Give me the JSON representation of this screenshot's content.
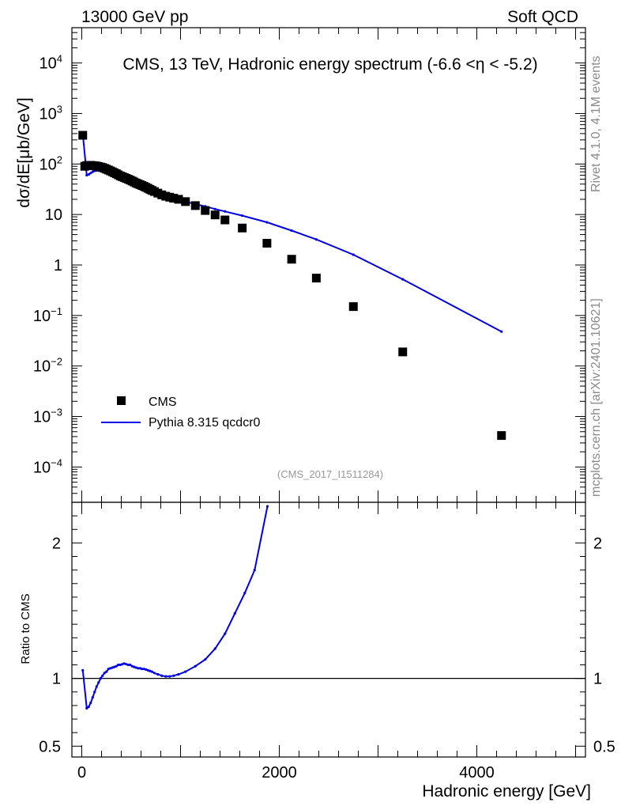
{
  "header": {
    "left": "13000 GeV pp",
    "right": "Soft QCD"
  },
  "side_labels": {
    "rivet": "Rivet 4.1.0,  4.1M events",
    "mcplots": "mcplots.cern.ch [arXiv:2401.10621]"
  },
  "colors": {
    "mc": "#0000e6",
    "data": "#000000",
    "ref_text": "#999999"
  },
  "chart_data": [
    {
      "type": "scatter",
      "panel": "main",
      "title": "CMS, 13 TeV, Hadronic energy spectrum (-6.6 <η < -5.2)",
      "ylabel": "dσ/dE[μb/GeV]",
      "xlabel": "Hadronic energy [GeV]",
      "yscale": "log",
      "xlim": [
        -100,
        5100
      ],
      "ylim": [
        2e-05,
        50000
      ],
      "y_ticks": [
        {
          "v": 10000,
          "label": "10^4"
        },
        {
          "v": 1000,
          "label": "10^3"
        },
        {
          "v": 100,
          "label": "10^2"
        },
        {
          "v": 10,
          "label": "10"
        },
        {
          "v": 1,
          "label": "1"
        },
        {
          "v": 0.1,
          "label": "10^-1"
        },
        {
          "v": 0.01,
          "label": "10^-2"
        },
        {
          "v": 0.001,
          "label": "10^-3"
        },
        {
          "v": 0.0001,
          "label": "10^-4"
        }
      ],
      "legend": {
        "position": "bottom-left",
        "entries": [
          "CMS",
          "Pythia 8.315 qcdcr0"
        ]
      },
      "reference": "(CMS_2017_I1511284)",
      "series": [
        {
          "name": "CMS",
          "style": "markers",
          "x": [
            10,
            30,
            50,
            70,
            90,
            110,
            130,
            150,
            170,
            190,
            210,
            230,
            250,
            270,
            290,
            310,
            330,
            350,
            370,
            390,
            410,
            430,
            450,
            470,
            490,
            510,
            530,
            550,
            570,
            590,
            610,
            630,
            650,
            670,
            690,
            710,
            735,
            770,
            810,
            850,
            890,
            930,
            980,
            1050,
            1150,
            1250,
            1350,
            1450,
            1625,
            1875,
            2125,
            2375,
            2750,
            3250,
            4250
          ],
          "y": [
            370,
            90,
            93,
            94,
            94,
            93,
            92,
            91,
            89,
            87,
            85,
            82,
            79,
            76,
            73,
            70,
            67,
            64,
            61,
            58,
            56,
            54,
            52,
            50,
            48,
            46,
            44,
            42,
            40.5,
            39,
            37.5,
            36,
            34.5,
            33,
            31.5,
            30,
            28.5,
            26.5,
            24.5,
            23,
            22,
            21,
            20,
            18,
            15,
            12,
            9.8,
            7.8,
            5.4,
            2.7,
            1.3,
            0.55,
            0.15,
            0.019,
            0.00042
          ]
        },
        {
          "name": "Pythia 8.315 qcdcr0",
          "style": "line",
          "x": [
            10,
            50,
            70,
            90,
            110,
            130,
            150,
            170,
            190,
            210,
            230,
            250,
            270,
            290,
            310,
            330,
            350,
            370,
            390,
            410,
            430,
            450,
            470,
            490,
            510,
            530,
            550,
            570,
            590,
            610,
            630,
            650,
            670,
            690,
            710,
            735,
            770,
            810,
            850,
            890,
            930,
            980,
            1050,
            1150,
            1250,
            1350,
            1450,
            1625,
            1875,
            2125,
            2375,
            2750,
            3250,
            4250
          ],
          "y": [
            390,
            60,
            62,
            66,
            70,
            73,
            74,
            75,
            74,
            73,
            72,
            70,
            68,
            66,
            64,
            62,
            60,
            58,
            56,
            54,
            52,
            50,
            48,
            46,
            44,
            42,
            40.5,
            39,
            37.5,
            36,
            34.5,
            33,
            31.5,
            30,
            28.5,
            27,
            25,
            23,
            21.5,
            20.5,
            19.5,
            19,
            18,
            16,
            14.5,
            12.8,
            11.5,
            9.5,
            7,
            4.8,
            3.2,
            1.6,
            0.52,
            0.048
          ]
        }
      ]
    },
    {
      "type": "line",
      "panel": "ratio",
      "ylabel": "Ratio to CMS",
      "xlabel": "Hadronic energy [GeV]",
      "ylim": [
        0.42,
        2.3
      ],
      "y_ticks": [
        {
          "v": 0.5,
          "label": "0.5"
        },
        {
          "v": 1,
          "label": "1"
        },
        {
          "v": 2,
          "label": "2"
        }
      ],
      "x_ticks": [
        {
          "v": 0,
          "label": "0"
        },
        {
          "v": 2000,
          "label": "2000"
        },
        {
          "v": 4000,
          "label": "4000"
        }
      ],
      "reference_line": 1,
      "series": [
        {
          "name": "Pythia 8.315 qcdcr0 / CMS",
          "x": [
            10,
            50,
            70,
            90,
            110,
            130,
            150,
            170,
            190,
            210,
            230,
            250,
            270,
            290,
            310,
            330,
            350,
            370,
            390,
            410,
            430,
            450,
            470,
            490,
            510,
            530,
            550,
            570,
            590,
            610,
            630,
            650,
            670,
            690,
            710,
            735,
            770,
            810,
            850,
            890,
            930,
            980,
            1050,
            1150,
            1250,
            1350,
            1450,
            1550,
            1650,
            1750,
            1880
          ],
          "y": [
            1.06,
            0.78,
            0.79,
            0.82,
            0.86,
            0.9,
            0.94,
            0.97,
            1.0,
            1.02,
            1.04,
            1.05,
            1.07,
            1.075,
            1.08,
            1.085,
            1.09,
            1.1,
            1.1,
            1.105,
            1.11,
            1.105,
            1.1,
            1.1,
            1.09,
            1.085,
            1.08,
            1.075,
            1.075,
            1.07,
            1.07,
            1.065,
            1.06,
            1.055,
            1.05,
            1.04,
            1.03,
            1.02,
            1.015,
            1.015,
            1.02,
            1.03,
            1.05,
            1.09,
            1.14,
            1.22,
            1.33,
            1.48,
            1.63,
            1.8,
            2.27
          ]
        }
      ]
    }
  ]
}
